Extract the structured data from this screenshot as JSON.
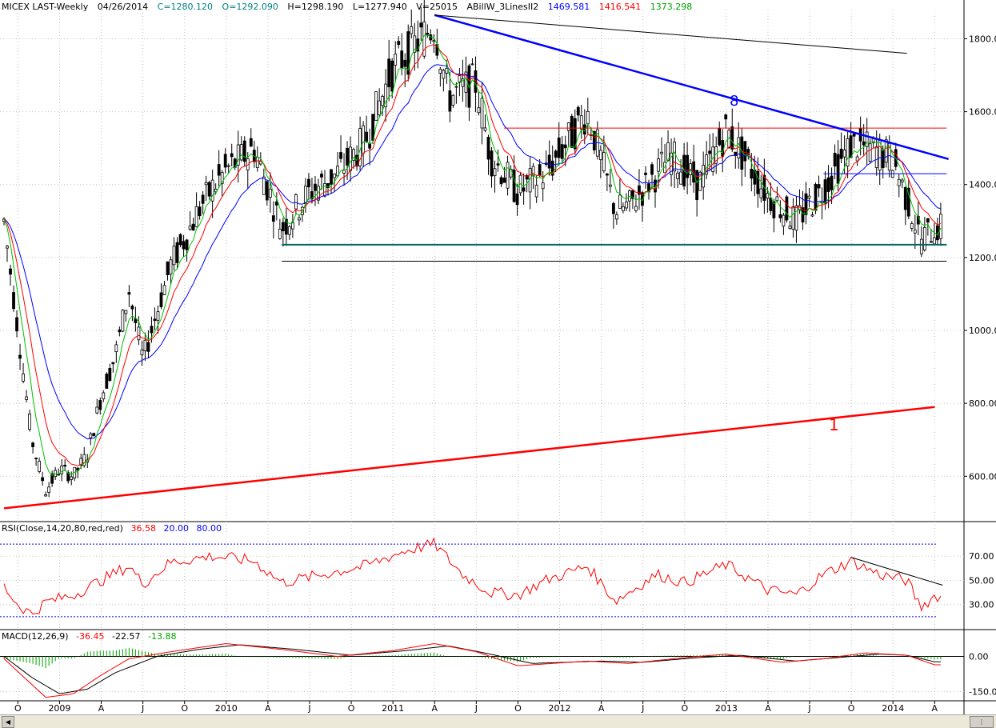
{
  "header": {
    "symbol": "MICEX LAST-Weekly",
    "date": "04/26/2014",
    "close": "C=1280.120",
    "open": "O=1292.090",
    "high": "H=1298.190",
    "low": "L=1277.940",
    "volume": "V=25015",
    "indicator": "ABillW_3LinesII2",
    "line_blue": "1469.581",
    "line_red": "1416.541",
    "line_green": "1373.298"
  },
  "rsi_header": {
    "label": "RSI(Close,14,20,80,red,red)",
    "value": "36.58",
    "low": "20.00",
    "high": "80.00"
  },
  "macd_header": {
    "label": "MACD(12,26,9)",
    "macd": "-36.45",
    "signal": "-22.57",
    "hist": "-13.88"
  },
  "colors": {
    "price": "#000000",
    "blue": "#0000ff",
    "red": "#ff0000",
    "green": "#00c000",
    "teal": "#006666",
    "grid": "#c0c0c0",
    "axis_bg": "#ffffff"
  },
  "annotations": {
    "trend_down_label": "8",
    "trend_up_label": "1"
  },
  "chart_data": [
    {
      "type": "candlestick",
      "title": "MICEX LAST-Weekly",
      "y_ticks": [
        "1800.00",
        "1600.00",
        "1400.00",
        "1200.00",
        "1000.00",
        "800.00",
        "600.00"
      ],
      "ylim": [
        480,
        1880
      ],
      "x_ticks": [
        "O",
        "2009",
        "A",
        "J",
        "O",
        "2010",
        "A",
        "J",
        "O",
        "2011",
        "A",
        "J",
        "O",
        "2012",
        "A",
        "J",
        "O",
        "2013",
        "A",
        "J",
        "O",
        "2014",
        "A"
      ],
      "x_range": [
        "2008-09",
        "2014-04"
      ],
      "approx_close_path": [
        {
          "x": "2008-09",
          "y": 1300
        },
        {
          "x": "2008-10",
          "y": 1000
        },
        {
          "x": "2008-11",
          "y": 700
        },
        {
          "x": "2008-12",
          "y": 560
        },
        {
          "x": "2009-01",
          "y": 620
        },
        {
          "x": "2009-02",
          "y": 600
        },
        {
          "x": "2009-03",
          "y": 660
        },
        {
          "x": "2009-04",
          "y": 820
        },
        {
          "x": "2009-05",
          "y": 930
        },
        {
          "x": "2009-06",
          "y": 1110
        },
        {
          "x": "2009-07",
          "y": 920
        },
        {
          "x": "2009-08",
          "y": 1050
        },
        {
          "x": "2009-09",
          "y": 1180
        },
        {
          "x": "2009-10",
          "y": 1250
        },
        {
          "x": "2009-11",
          "y": 1330
        },
        {
          "x": "2009-12",
          "y": 1390
        },
        {
          "x": "2010-01",
          "y": 1440
        },
        {
          "x": "2010-03",
          "y": 1500
        },
        {
          "x": "2010-05",
          "y": 1280
        },
        {
          "x": "2010-07",
          "y": 1380
        },
        {
          "x": "2010-09",
          "y": 1430
        },
        {
          "x": "2010-11",
          "y": 1520
        },
        {
          "x": "2011-01",
          "y": 1720
        },
        {
          "x": "2011-03",
          "y": 1800
        },
        {
          "x": "2011-04",
          "y": 1840
        },
        {
          "x": "2011-05",
          "y": 1640
        },
        {
          "x": "2011-07",
          "y": 1680
        },
        {
          "x": "2011-08",
          "y": 1480
        },
        {
          "x": "2011-10",
          "y": 1380
        },
        {
          "x": "2011-12",
          "y": 1430
        },
        {
          "x": "2012-03",
          "y": 1600
        },
        {
          "x": "2012-05",
          "y": 1330
        },
        {
          "x": "2012-06",
          "y": 1340
        },
        {
          "x": "2012-09",
          "y": 1480
        },
        {
          "x": "2012-11",
          "y": 1400
        },
        {
          "x": "2013-01",
          "y": 1550
        },
        {
          "x": "2013-04",
          "y": 1370
        },
        {
          "x": "2013-06",
          "y": 1300
        },
        {
          "x": "2013-08",
          "y": 1390
        },
        {
          "x": "2013-10",
          "y": 1510
        },
        {
          "x": "2013-12",
          "y": 1490
        },
        {
          "x": "2014-01",
          "y": 1470
        },
        {
          "x": "2014-03",
          "y": 1250
        },
        {
          "x": "2014-04",
          "y": 1280
        }
      ],
      "series": [
        {
          "name": "ABillW_3LinesII2 blue",
          "last": 1469.581
        },
        {
          "name": "ABillW_3LinesII2 red",
          "last": 1416.541
        },
        {
          "name": "ABillW_3LinesII2 green",
          "last": 1373.298
        }
      ],
      "horizontal_levels": [
        {
          "y": 1555,
          "color": "red",
          "from": "2011-09",
          "to": "2014-04"
        },
        {
          "y": 1430,
          "color": "blue",
          "from": "2013-08",
          "to": "2014-04"
        },
        {
          "y": 1235,
          "color": "teal",
          "from": "2010-05",
          "to": "2014-04"
        },
        {
          "y": 1190,
          "color": "black",
          "from": "2010-05",
          "to": "2014-04"
        }
      ],
      "trendlines": [
        {
          "label": "8",
          "color": "blue",
          "from": {
            "x": "2011-04",
            "y": 1865
          },
          "to": {
            "x": "2014-05",
            "y": 1470
          }
        },
        {
          "label": "1",
          "color": "red",
          "from": {
            "x": "2008-09",
            "y": 512
          },
          "to": {
            "x": "2014-04",
            "y": 790
          }
        },
        {
          "label": "",
          "color": "black",
          "from": {
            "x": "2011-04",
            "y": 1865
          },
          "to": {
            "x": "2014-02",
            "y": 1760
          }
        }
      ]
    },
    {
      "type": "line",
      "title": "RSI(Close,14,20,80,red,red)",
      "y_ticks": [
        "70.00",
        "50.00",
        "30.00"
      ],
      "ylim": [
        10,
        88
      ],
      "reference_lines": [
        20,
        80
      ],
      "series": [
        {
          "name": "RSI",
          "points": [
            {
              "x": "2008-09",
              "y": 45
            },
            {
              "x": "2008-10",
              "y": 30
            },
            {
              "x": "2008-11",
              "y": 22
            },
            {
              "x": "2008-12",
              "y": 32
            },
            {
              "x": "2009-02",
              "y": 38
            },
            {
              "x": "2009-04",
              "y": 50
            },
            {
              "x": "2009-06",
              "y": 62
            },
            {
              "x": "2009-07",
              "y": 47
            },
            {
              "x": "2009-09",
              "y": 65
            },
            {
              "x": "2009-12",
              "y": 70
            },
            {
              "x": "2010-03",
              "y": 66
            },
            {
              "x": "2010-05",
              "y": 48
            },
            {
              "x": "2010-08",
              "y": 55
            },
            {
              "x": "2010-11",
              "y": 62
            },
            {
              "x": "2011-02",
              "y": 75
            },
            {
              "x": "2011-04",
              "y": 80
            },
            {
              "x": "2011-06",
              "y": 55
            },
            {
              "x": "2011-08",
              "y": 40
            },
            {
              "x": "2011-10",
              "y": 38
            },
            {
              "x": "2011-12",
              "y": 50
            },
            {
              "x": "2012-03",
              "y": 62
            },
            {
              "x": "2012-05",
              "y": 33
            },
            {
              "x": "2012-08",
              "y": 55
            },
            {
              "x": "2012-10",
              "y": 48
            },
            {
              "x": "2013-01",
              "y": 63
            },
            {
              "x": "2013-04",
              "y": 42
            },
            {
              "x": "2013-06",
              "y": 38
            },
            {
              "x": "2013-08",
              "y": 55
            },
            {
              "x": "2013-10",
              "y": 66
            },
            {
              "x": "2013-12",
              "y": 55
            },
            {
              "x": "2014-02",
              "y": 50
            },
            {
              "x": "2014-03",
              "y": 28
            },
            {
              "x": "2014-04",
              "y": 37
            }
          ]
        }
      ],
      "trendlines": [
        {
          "color": "black",
          "from": {
            "x": "2013-10",
            "y": 69
          },
          "to": {
            "x": "2014-04",
            "y": 46
          }
        }
      ]
    },
    {
      "type": "line",
      "title": "MACD(12,26,9)",
      "y_ticks": [
        "0.00",
        "-150.00"
      ],
      "ylim": [
        -190,
        60
      ],
      "series": [
        {
          "name": "MACD",
          "color": "red",
          "points": [
            {
              "x": "2008-09",
              "y": -10
            },
            {
              "x": "2008-11",
              "y": -120
            },
            {
              "x": "2008-12",
              "y": -175
            },
            {
              "x": "2009-02",
              "y": -160
            },
            {
              "x": "2009-04",
              "y": -80
            },
            {
              "x": "2009-06",
              "y": -10
            },
            {
              "x": "2009-09",
              "y": 20
            },
            {
              "x": "2010-01",
              "y": 55
            },
            {
              "x": "2010-05",
              "y": 30
            },
            {
              "x": "2010-09",
              "y": 0
            },
            {
              "x": "2011-01",
              "y": 25
            },
            {
              "x": "2011-04",
              "y": 55
            },
            {
              "x": "2011-07",
              "y": 20
            },
            {
              "x": "2011-10",
              "y": -40
            },
            {
              "x": "2012-03",
              "y": -20
            },
            {
              "x": "2012-06",
              "y": -30
            },
            {
              "x": "2012-10",
              "y": -5
            },
            {
              "x": "2013-01",
              "y": 10
            },
            {
              "x": "2013-05",
              "y": -25
            },
            {
              "x": "2013-08",
              "y": -10
            },
            {
              "x": "2013-11",
              "y": 15
            },
            {
              "x": "2014-02",
              "y": 5
            },
            {
              "x": "2014-04",
              "y": -36
            }
          ]
        },
        {
          "name": "Signal",
          "color": "black",
          "points": [
            {
              "x": "2008-09",
              "y": 0
            },
            {
              "x": "2008-11",
              "y": -90
            },
            {
              "x": "2009-01",
              "y": -160
            },
            {
              "x": "2009-03",
              "y": -140
            },
            {
              "x": "2009-05",
              "y": -70
            },
            {
              "x": "2009-08",
              "y": 0
            },
            {
              "x": "2009-11",
              "y": 30
            },
            {
              "x": "2010-02",
              "y": 50
            },
            {
              "x": "2010-06",
              "y": 30
            },
            {
              "x": "2010-10",
              "y": 5
            },
            {
              "x": "2011-02",
              "y": 25
            },
            {
              "x": "2011-05",
              "y": 45
            },
            {
              "x": "2011-08",
              "y": 10
            },
            {
              "x": "2011-11",
              "y": -30
            },
            {
              "x": "2012-04",
              "y": -20
            },
            {
              "x": "2012-07",
              "y": -25
            },
            {
              "x": "2012-11",
              "y": -5
            },
            {
              "x": "2013-02",
              "y": 5
            },
            {
              "x": "2013-06",
              "y": -20
            },
            {
              "x": "2013-09",
              "y": -5
            },
            {
              "x": "2013-12",
              "y": 10
            },
            {
              "x": "2014-02",
              "y": 5
            },
            {
              "x": "2014-04",
              "y": -23
            }
          ]
        }
      ],
      "histogram_last": -13.88
    }
  ]
}
